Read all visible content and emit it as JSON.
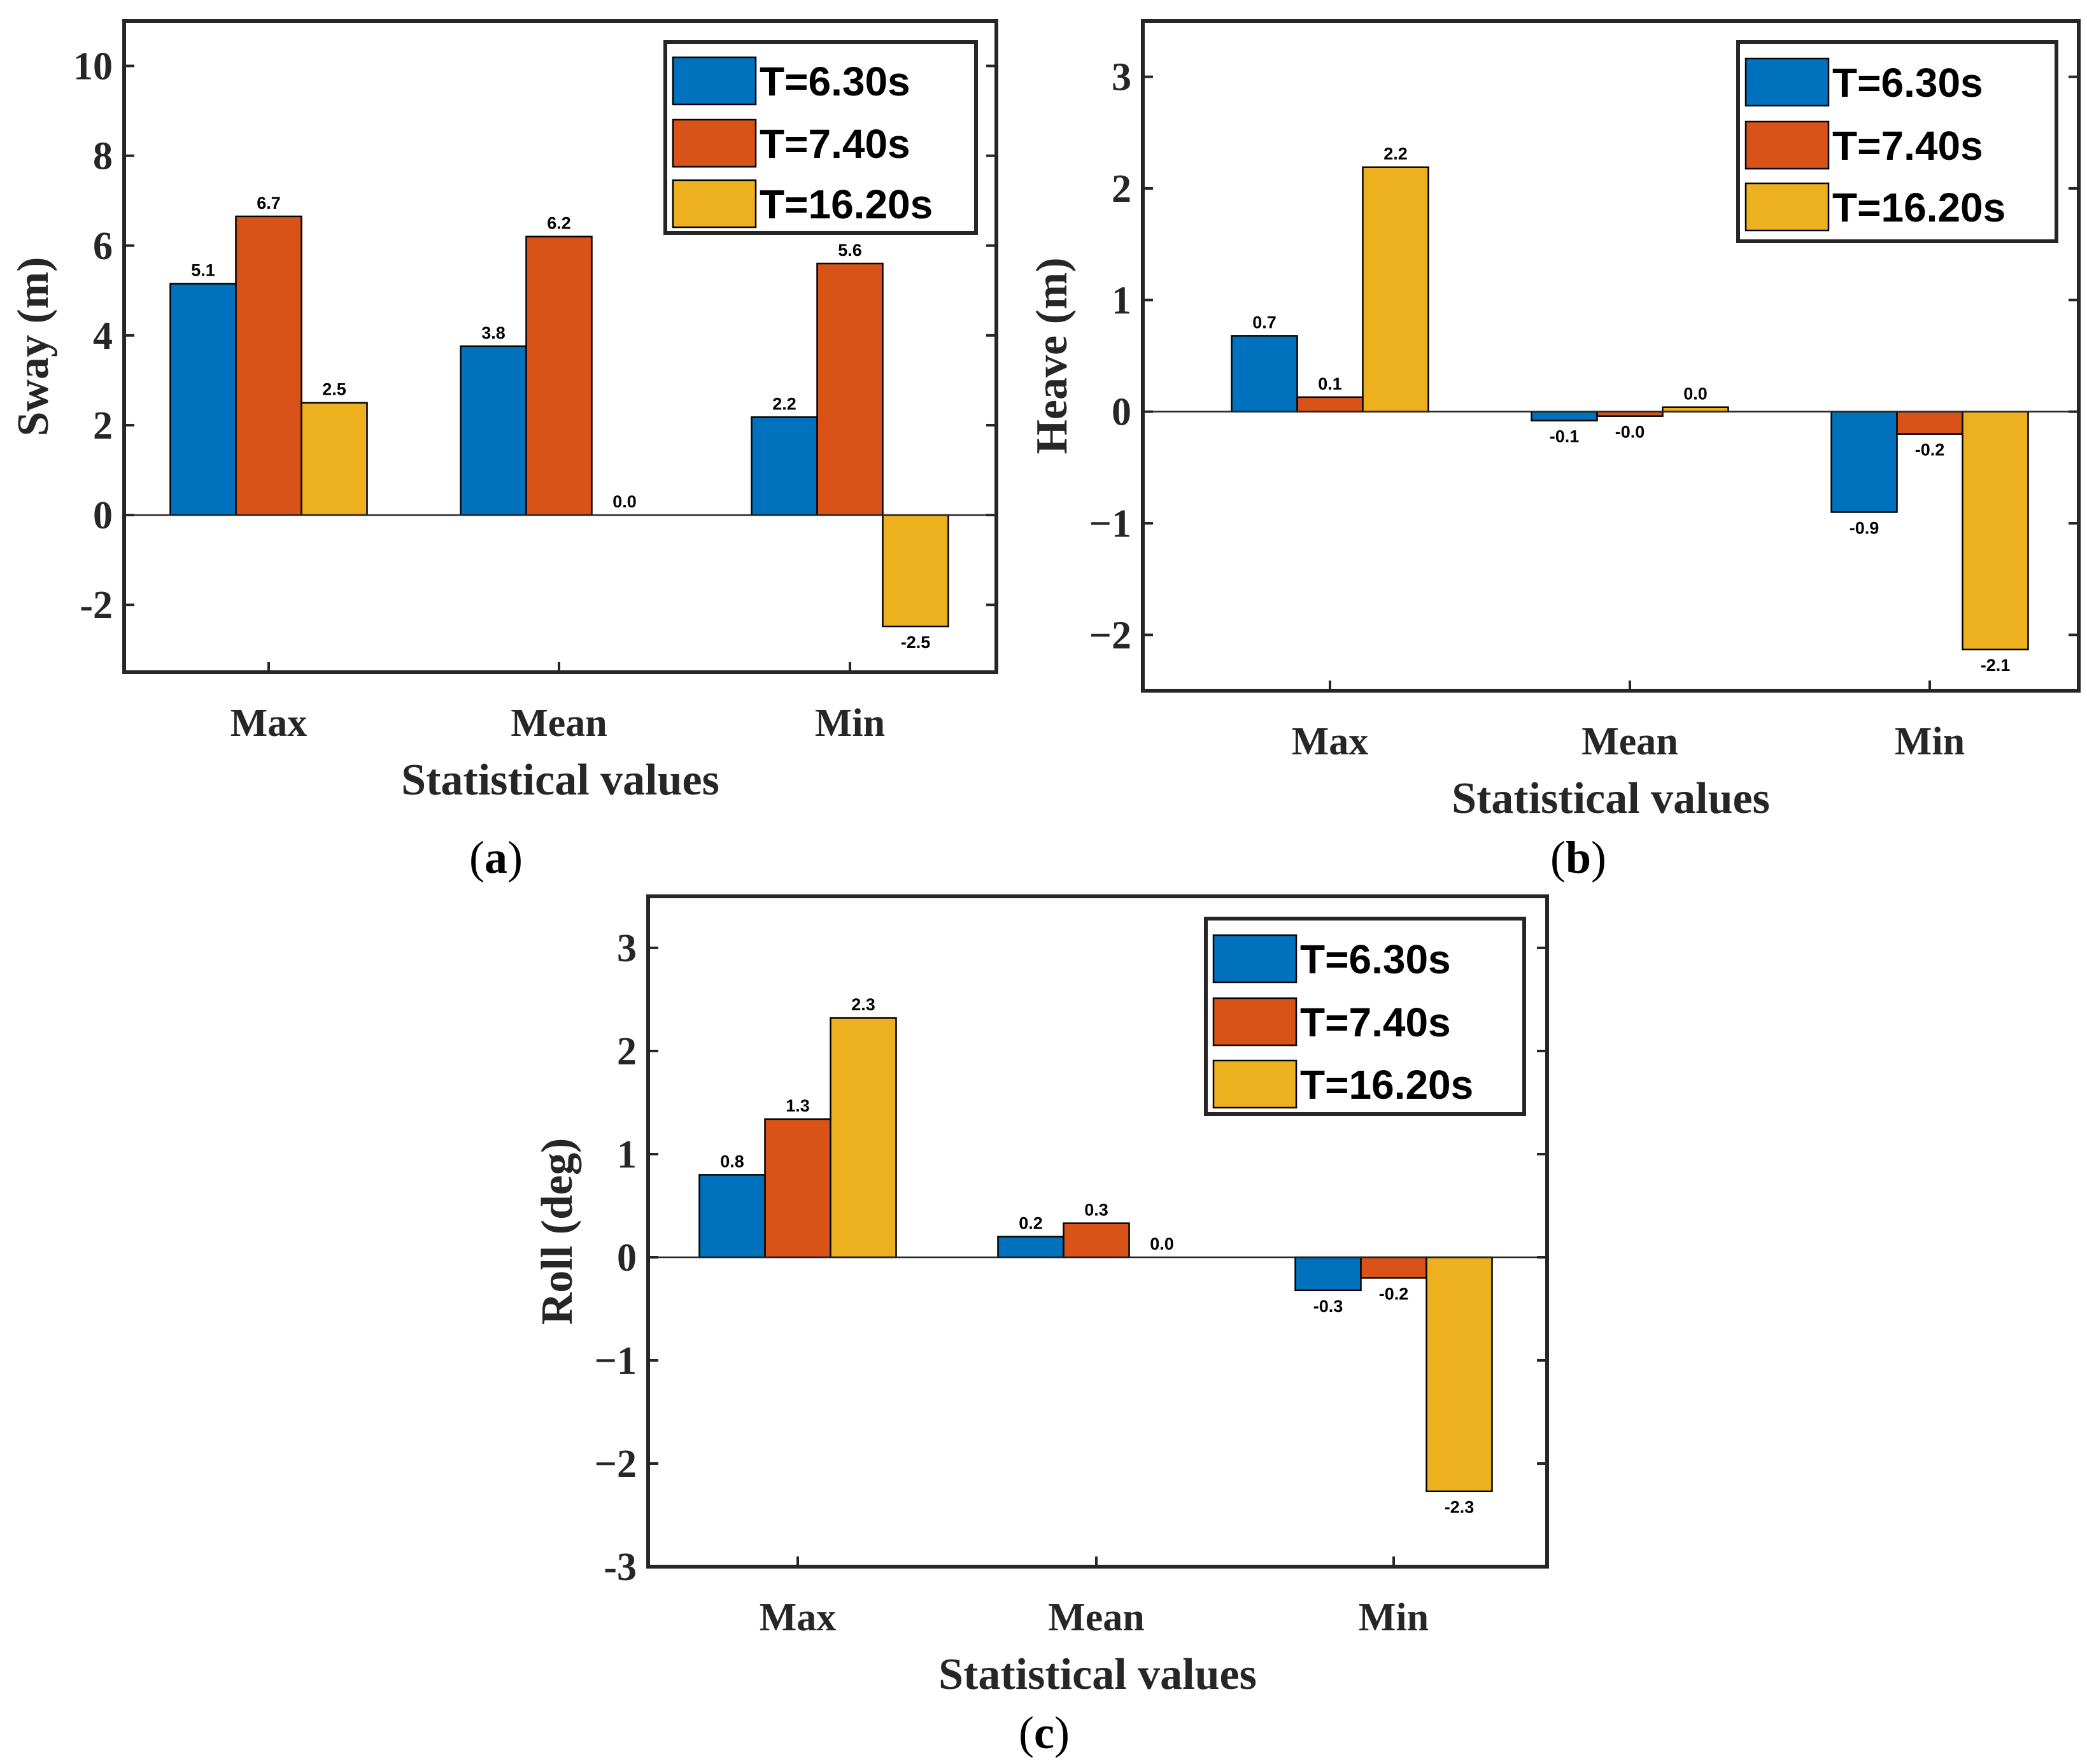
{
  "figure": {
    "captions": [
      "a",
      "b",
      "c"
    ]
  },
  "colors": {
    "s0": "#0072BD",
    "s1": "#D95319",
    "s2": "#EDB120"
  },
  "chart_data": [
    {
      "id": "a",
      "type": "bar",
      "xlabel": "Statistical values",
      "ylabel": "Sway (m)",
      "categories": [
        "Max",
        "Mean",
        "Min"
      ],
      "ylim": [
        -3.5,
        11
      ],
      "yticks": [
        -2,
        0,
        2,
        4,
        6,
        8,
        10
      ],
      "yticklabels": [
        "-2",
        "0",
        "2",
        "4",
        "6",
        "8",
        "10"
      ],
      "legend": "top-right",
      "series": [
        {
          "name": "T=6.30s",
          "values": [
            5.15,
            3.76,
            2.18
          ],
          "labels": [
            "5.1",
            "3.8",
            "2.2"
          ]
        },
        {
          "name": "T=7.40s",
          "values": [
            6.65,
            6.2,
            5.6
          ],
          "labels": [
            "6.7",
            "6.2",
            "5.6"
          ]
        },
        {
          "name": "T=16.20s",
          "values": [
            2.5,
            0.0,
            -2.48
          ],
          "labels": [
            "2.5",
            "0.0",
            "-2.5"
          ]
        }
      ]
    },
    {
      "id": "b",
      "type": "bar",
      "xlabel": "Statistical values",
      "ylabel": "Heave (m)",
      "categories": [
        "Max",
        "Mean",
        "Min"
      ],
      "ylim": [
        -2.5,
        3.5
      ],
      "yticks": [
        -2,
        -1,
        0,
        1,
        2,
        3
      ],
      "yticklabels": [
        "−2",
        "−1",
        "0",
        "1",
        "2",
        "3"
      ],
      "legend": "top-right",
      "series": [
        {
          "name": "T=6.30s",
          "values": [
            0.68,
            -0.08,
            -0.9
          ],
          "labels": [
            "0.7",
            "-0.1",
            "-0.9"
          ]
        },
        {
          "name": "T=7.40s",
          "values": [
            0.13,
            -0.04,
            -0.2
          ],
          "labels": [
            "0.1",
            "-0.0",
            "-0.2"
          ]
        },
        {
          "name": "T=16.20s",
          "values": [
            2.19,
            0.04,
            -2.13
          ],
          "labels": [
            "2.2",
            "0.0",
            "-2.1"
          ]
        }
      ]
    },
    {
      "id": "c",
      "type": "bar",
      "xlabel": "Statistical values",
      "ylabel": "Roll (deg)",
      "categories": [
        "Max",
        "Mean",
        "Min"
      ],
      "ylim": [
        -3,
        3.5
      ],
      "yticks": [
        -3,
        -2,
        -1,
        0,
        1,
        2,
        3
      ],
      "yticklabels": [
        "-3",
        "−2",
        "−1",
        "0",
        "1",
        "2",
        "3"
      ],
      "legend": "top-right",
      "series": [
        {
          "name": "T=6.30s",
          "values": [
            0.8,
            0.2,
            -0.32
          ],
          "labels": [
            "0.8",
            "0.2",
            "-0.3"
          ]
        },
        {
          "name": "T=7.40s",
          "values": [
            1.34,
            0.33,
            -0.2
          ],
          "labels": [
            "1.3",
            "0.3",
            "-0.2"
          ]
        },
        {
          "name": "T=16.20s",
          "values": [
            2.32,
            0.0,
            -2.27
          ],
          "labels": [
            "2.3",
            "0.0",
            "-2.3"
          ]
        }
      ]
    }
  ]
}
